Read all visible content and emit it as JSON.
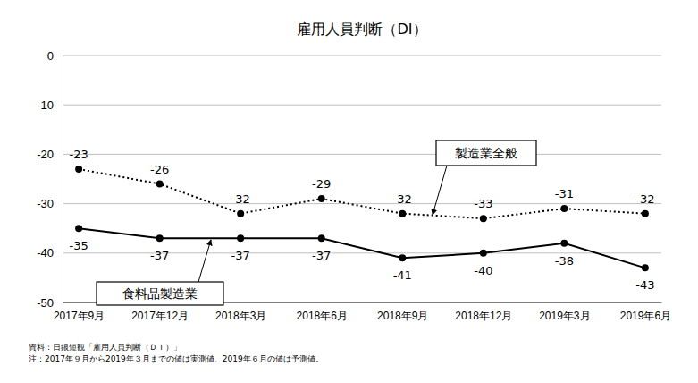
{
  "chart_data": {
    "type": "line",
    "title": "雇用人員判断（DI）",
    "categories": [
      "2017年9月",
      "2017年12月",
      "2018年3月",
      "2018年6月",
      "2018年9月",
      "2018年12月",
      "2019年3月",
      "2019年6月"
    ],
    "series": [
      {
        "name": "製造業全般",
        "color": "#000000",
        "line_style": "dotted",
        "marker": "circle",
        "values": [
          -23,
          -26,
          -32,
          -29,
          -32,
          -33,
          -31,
          -32
        ]
      },
      {
        "name": "食料品製造業",
        "color": "#000000",
        "line_style": "solid",
        "marker": "circle",
        "values": [
          -35,
          -37,
          -37,
          -37,
          -41,
          -40,
          -38,
          -43
        ]
      }
    ],
    "ylim": [
      -50,
      0
    ],
    "yticks": [
      -50,
      -40,
      -30,
      -20,
      -10,
      0
    ],
    "grid": true,
    "data_labels": true,
    "source": "資料：日銀短観「雇用人員判断（ＤＩ）」",
    "note": "注：2017年９月から2019年３月までの値は実測値、2019年６月の値は予測値。"
  }
}
